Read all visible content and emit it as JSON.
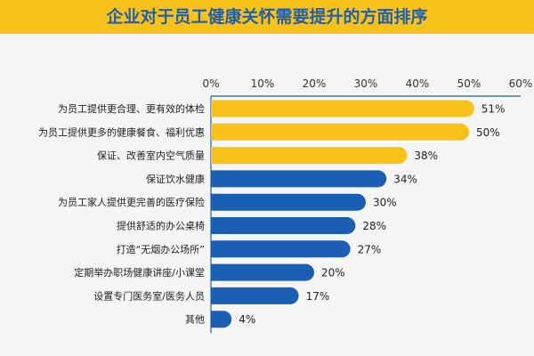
{
  "title": "企业对于员工健康关怀需要提升的方面排序",
  "colors": {
    "banner": "#f9c21a",
    "title": "#1f5fae",
    "highlight": "#f9c21a",
    "normal": "#1a5fb4",
    "axis": "#1f5fae"
  },
  "chart_data": {
    "type": "bar",
    "orientation": "horizontal",
    "title": "企业对于员工健康关怀需要提升的方面排序",
    "xlim": [
      0,
      60
    ],
    "x_ticks": [
      "0%",
      "10%",
      "20%",
      "30%",
      "40%",
      "50%",
      "60%"
    ],
    "categories": [
      "为员工提供更合理、更有效的体检",
      "为员工提供更多的健康餐食、福利优惠",
      "保证、改善室内空气质量",
      "保证饮水健康",
      "为员工家人提供更完善的医疗保险",
      "提供舒适的办公桌椅",
      "打造“无烟办公场所”",
      "定期举办职场健康讲座/小课堂",
      "设置专门医务室/医务人员",
      "其他"
    ],
    "values": [
      51,
      50,
      38,
      34,
      30,
      28,
      27,
      20,
      17,
      4
    ],
    "value_labels": [
      "51%",
      "50%",
      "38%",
      "34%",
      "30%",
      "28%",
      "27%",
      "20%",
      "17%",
      "4%"
    ],
    "highlight_count": 3,
    "grid": false,
    "legend": "none"
  }
}
